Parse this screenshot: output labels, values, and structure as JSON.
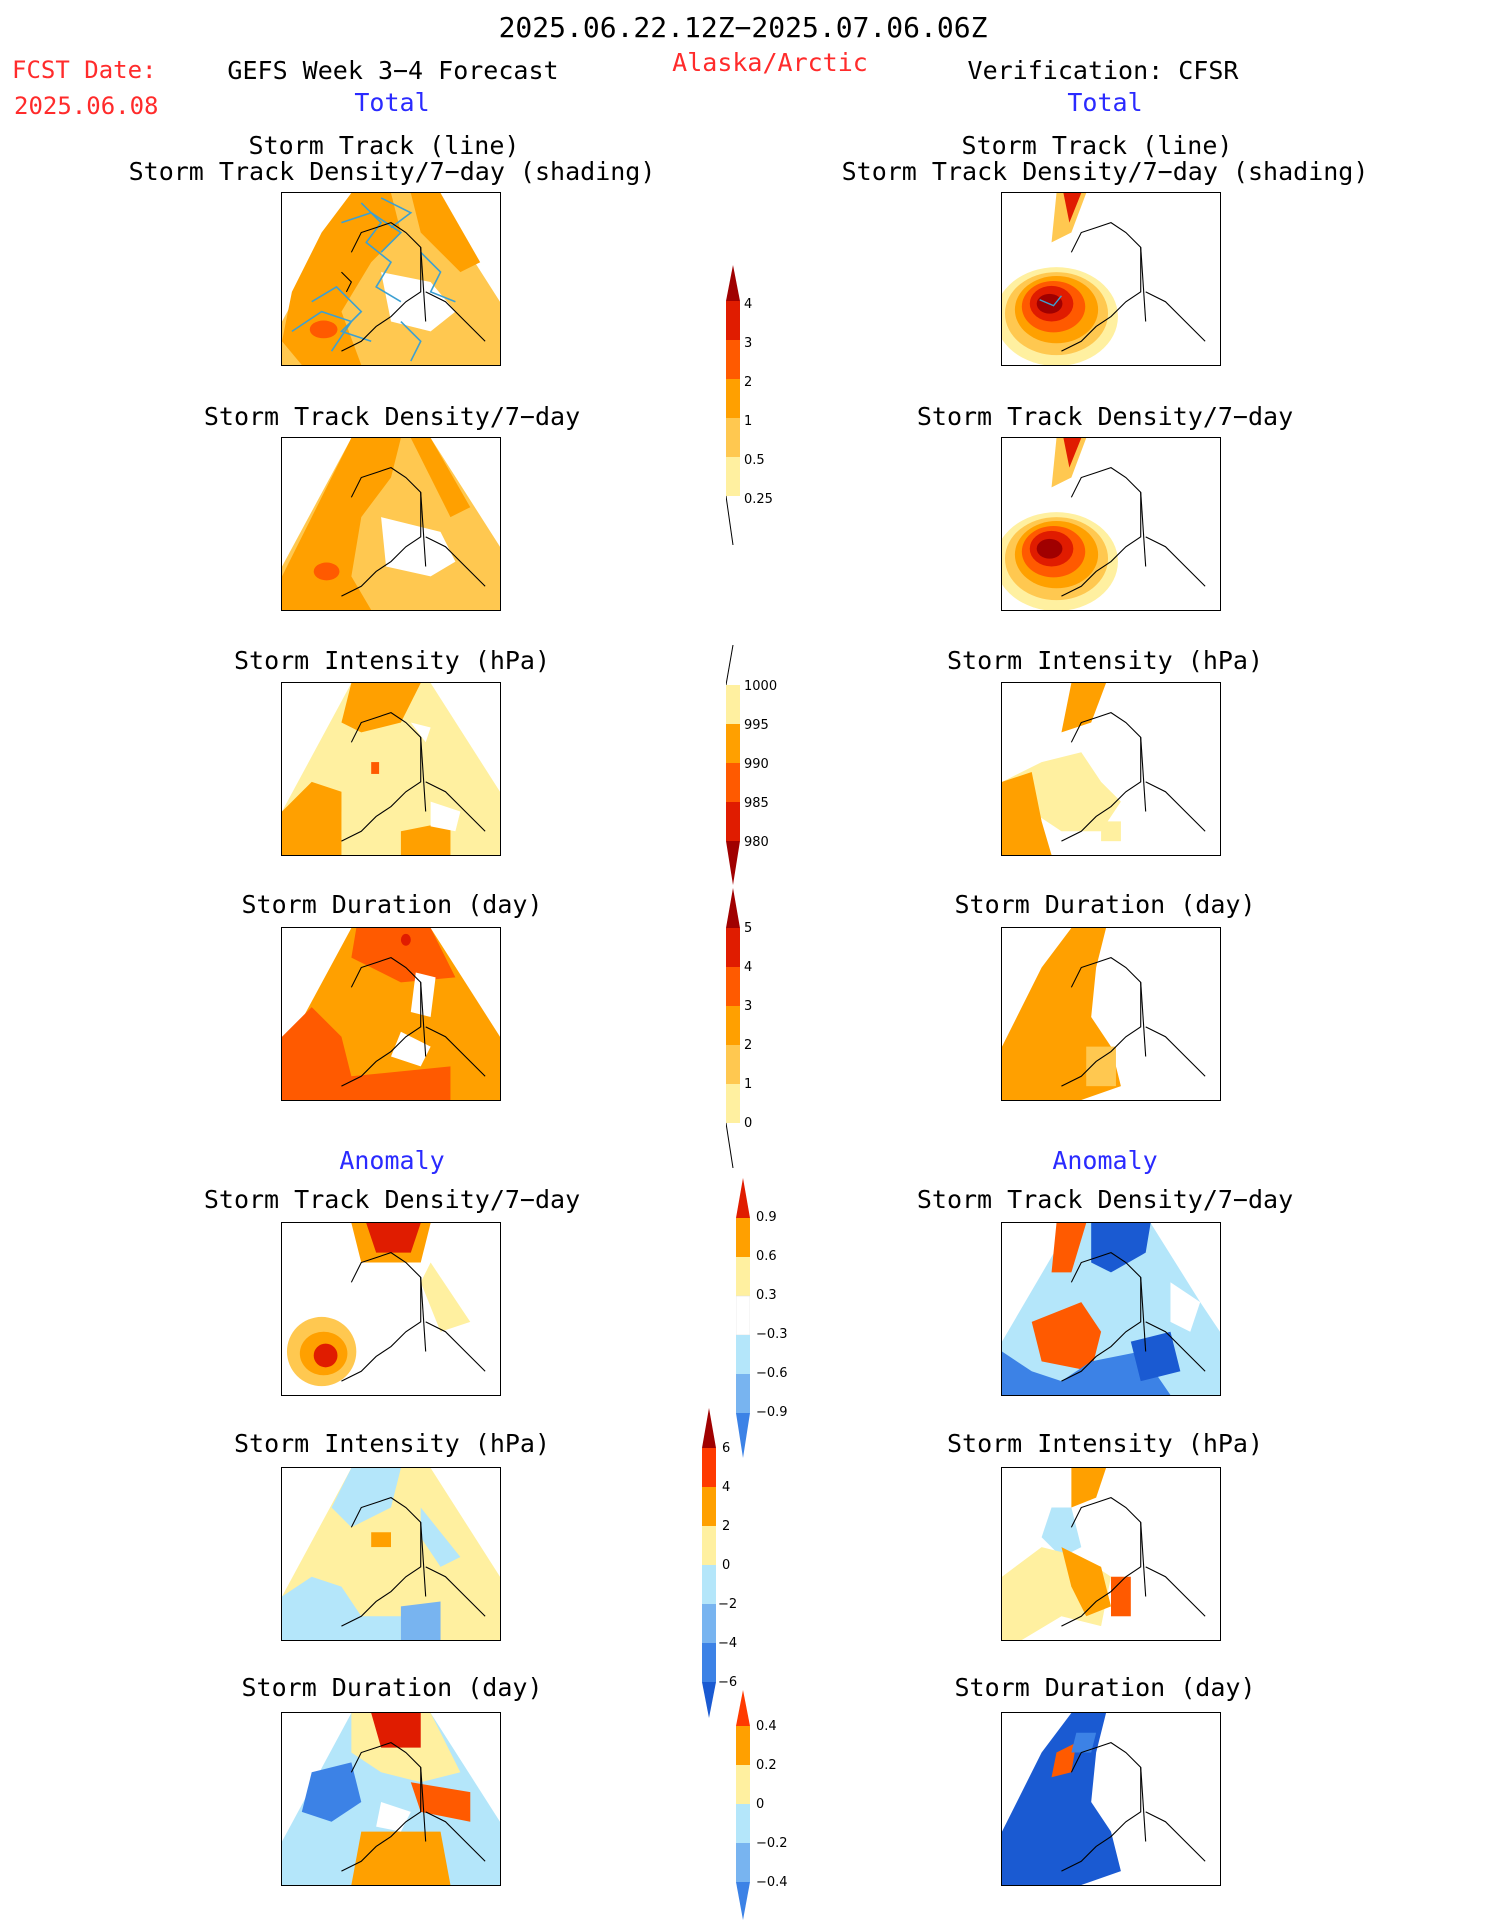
{
  "header": {
    "period": "2025.06.22.12Z−2025.07.06.06Z",
    "region": "Alaska/Arctic",
    "fcst_label": "FCST Date:",
    "fcst_date": "2025.06.08",
    "left_title": "GEFS Week 3−4 Forecast",
    "right_title": "Verification: CFSR",
    "total_left": "Total",
    "total_right": "Total",
    "anomaly_left": "Anomaly",
    "anomaly_right": "Anomaly"
  },
  "panels": {
    "track_line_title": "Storm Track (line)",
    "track_shading_title": "Storm Track Density/7−day (shading)",
    "density_title": "Storm Track Density/7−day",
    "intensity_title": "Storm Intensity (hPa)",
    "duration_title": "Storm Duration (day)"
  },
  "colorbars": {
    "density_total": [
      "4",
      "3",
      "2",
      "1",
      "0.5",
      "0.25"
    ],
    "intensity_total": [
      "1000",
      "995",
      "990",
      "985",
      "980"
    ],
    "duration_total": [
      "5",
      "4",
      "3",
      "2",
      "1",
      "0"
    ],
    "density_anom": [
      "0.9",
      "0.6",
      "0.3",
      "−0.3",
      "−0.6",
      "−0.9"
    ],
    "intensity_anom": [
      "6",
      "4",
      "2",
      "0",
      "−2",
      "−4",
      "−6"
    ],
    "duration_anom": [
      "0.4",
      "0.2",
      "0",
      "−0.2",
      "−0.4"
    ]
  },
  "colors": {
    "dark_red": "#a00000",
    "red": "#e01c00",
    "orange_red": "#ff5a00",
    "orange": "#ffa000",
    "light_orange": "#ffc850",
    "pale_yellow": "#fff0a0",
    "light_blue": "#b4e6fa",
    "mid_blue": "#78b4f0",
    "blue": "#3c82e6",
    "dark_blue": "#1a5ad2",
    "track_line": "#3ca0d2"
  }
}
